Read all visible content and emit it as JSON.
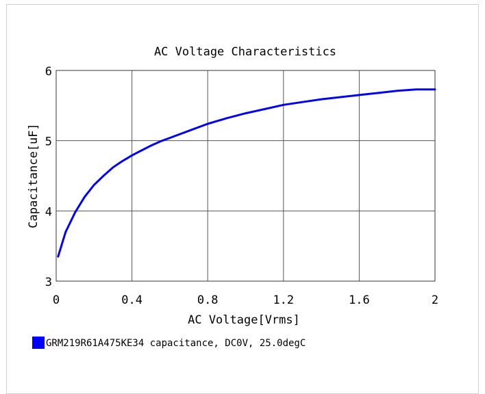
{
  "chart_data": {
    "type": "line",
    "title": "AC Voltage Characteristics",
    "xlabel": "AC Voltage[Vrms]",
    "ylabel": "Capacitance[uF]",
    "xlim": [
      0,
      2
    ],
    "ylim": [
      3,
      6
    ],
    "x_ticks": [
      "0",
      "0.4",
      "0.8",
      "1.2",
      "1.6",
      "2"
    ],
    "x_tick_values": [
      0,
      0.4,
      0.8,
      1.2,
      1.6,
      2
    ],
    "y_ticks": [
      "3",
      "4",
      "5",
      "6"
    ],
    "y_tick_values": [
      3,
      4,
      5,
      6
    ],
    "grid": true,
    "legend_position": "bottom-left",
    "series": [
      {
        "name": "GRM219R61A475KE34 capacitance, DC0V, 25.0degC",
        "color": "#0000ff",
        "x": [
          0.01,
          0.05,
          0.1,
          0.15,
          0.2,
          0.25,
          0.3,
          0.35,
          0.4,
          0.45,
          0.5,
          0.55,
          0.6,
          0.7,
          0.8,
          0.9,
          1.0,
          1.1,
          1.2,
          1.3,
          1.4,
          1.5,
          1.6,
          1.7,
          1.8,
          1.9,
          2.0
        ],
        "y": [
          3.35,
          3.7,
          3.98,
          4.2,
          4.37,
          4.5,
          4.62,
          4.71,
          4.79,
          4.86,
          4.93,
          4.99,
          5.04,
          5.14,
          5.24,
          5.32,
          5.39,
          5.45,
          5.51,
          5.55,
          5.59,
          5.62,
          5.65,
          5.68,
          5.71,
          5.73,
          5.73
        ]
      }
    ]
  }
}
